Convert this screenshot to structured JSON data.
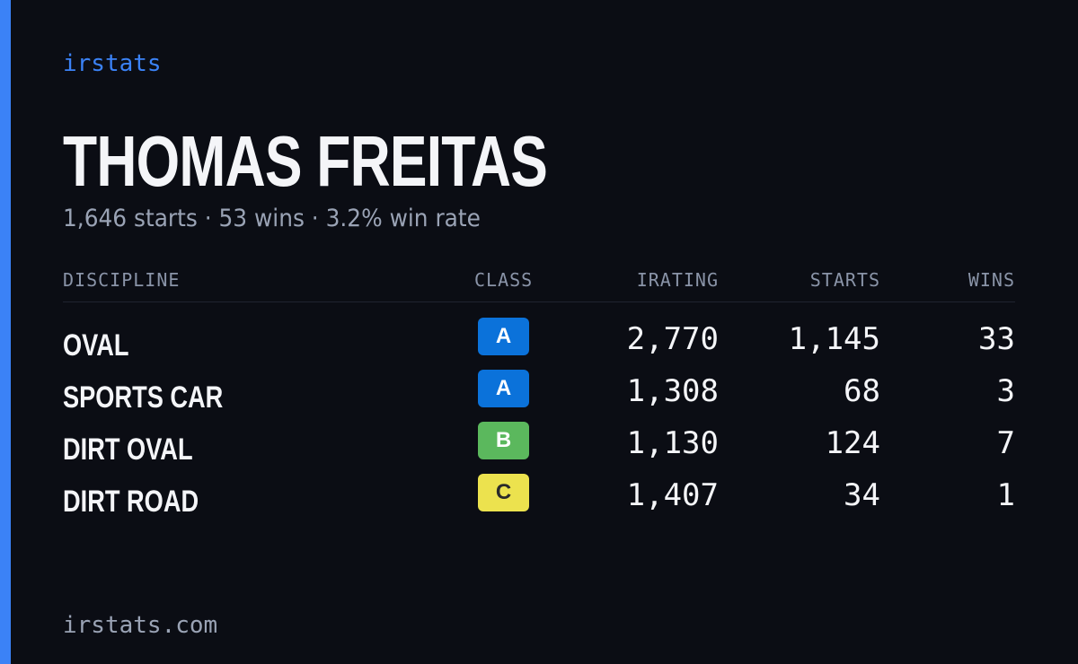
{
  "brand": "irstats",
  "title": "THOMAS FREITAS",
  "subtitle": "1,646 starts · 53 wins · 3.2% win rate",
  "table": {
    "headers": [
      "DISCIPLINE",
      "CLASS",
      "IRATING",
      "STARTS",
      "WINS"
    ],
    "rows": [
      [
        "OVAL",
        "A",
        "2,770",
        "1,145",
        "33"
      ],
      [
        "SPORTS CAR",
        "A",
        "1,308",
        "68",
        "3"
      ],
      [
        "DIRT OVAL",
        "B",
        "1,130",
        "124",
        "7"
      ],
      [
        "DIRT ROAD",
        "C",
        "1,407",
        "34",
        "1"
      ]
    ],
    "class_colors": [
      "#0b72da",
      "#0b72da",
      "#5bb85d",
      "#ece24e"
    ],
    "class_text_colors": [
      "#ffffff",
      "#ffffff",
      "#ffffff",
      "#2a2a2a"
    ]
  },
  "footer": "irstats.com"
}
